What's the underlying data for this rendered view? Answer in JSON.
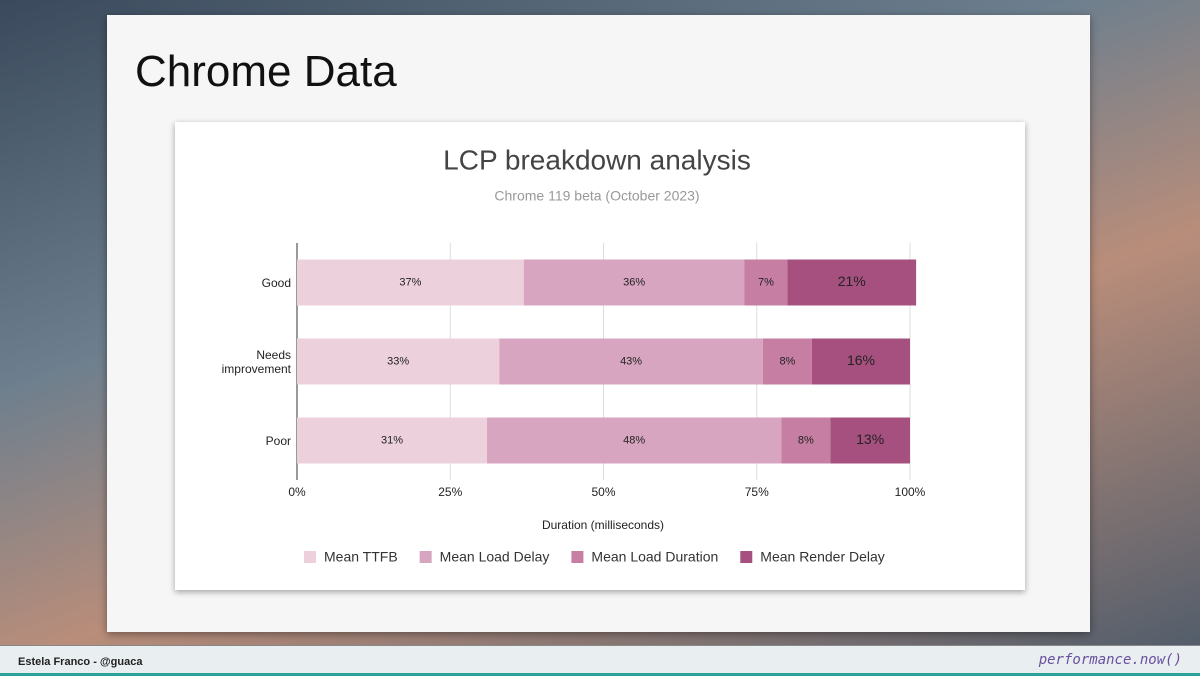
{
  "slide_title": "Chrome Data",
  "footer": {
    "author": "Estela Franco - @guaca",
    "logo": "performance.now()"
  },
  "chart_data": {
    "type": "stacked-bar-horizontal",
    "title": "LCP breakdown analysis",
    "subtitle": "Chrome 119 beta (October 2023)",
    "x_label": "Duration (milliseconds)",
    "categories": [
      "Good",
      "Needs improvement",
      "Poor"
    ],
    "series": [
      {
        "name": "Mean TTFB",
        "color": "#ecd1dd",
        "values": [
          37,
          33,
          31
        ],
        "value_labels": [
          "37%",
          "33%",
          "31%"
        ]
      },
      {
        "name": "Mean Load Delay",
        "color": "#d7a5c0",
        "values": [
          36,
          43,
          48
        ],
        "value_labels": [
          "36%",
          "43%",
          "48%"
        ]
      },
      {
        "name": "Mean Load Duration",
        "color": "#c67ea3",
        "values": [
          7,
          8,
          8
        ],
        "value_labels": [
          "7%",
          "8%",
          "8%"
        ]
      },
      {
        "name": "Mean Render Delay",
        "color": "#a65080",
        "values": [
          21,
          16,
          13
        ],
        "value_labels": [
          "21%",
          "16%",
          "13%"
        ]
      }
    ],
    "xlim": [
      0,
      100
    ],
    "xticks": [
      {
        "value": 0,
        "label": "0%"
      },
      {
        "value": 25,
        "label": "25%"
      },
      {
        "value": 50,
        "label": "50%"
      },
      {
        "value": 75,
        "label": "75%"
      },
      {
        "value": 100,
        "label": "100%"
      }
    ],
    "grid": true,
    "legend": "bottom"
  }
}
